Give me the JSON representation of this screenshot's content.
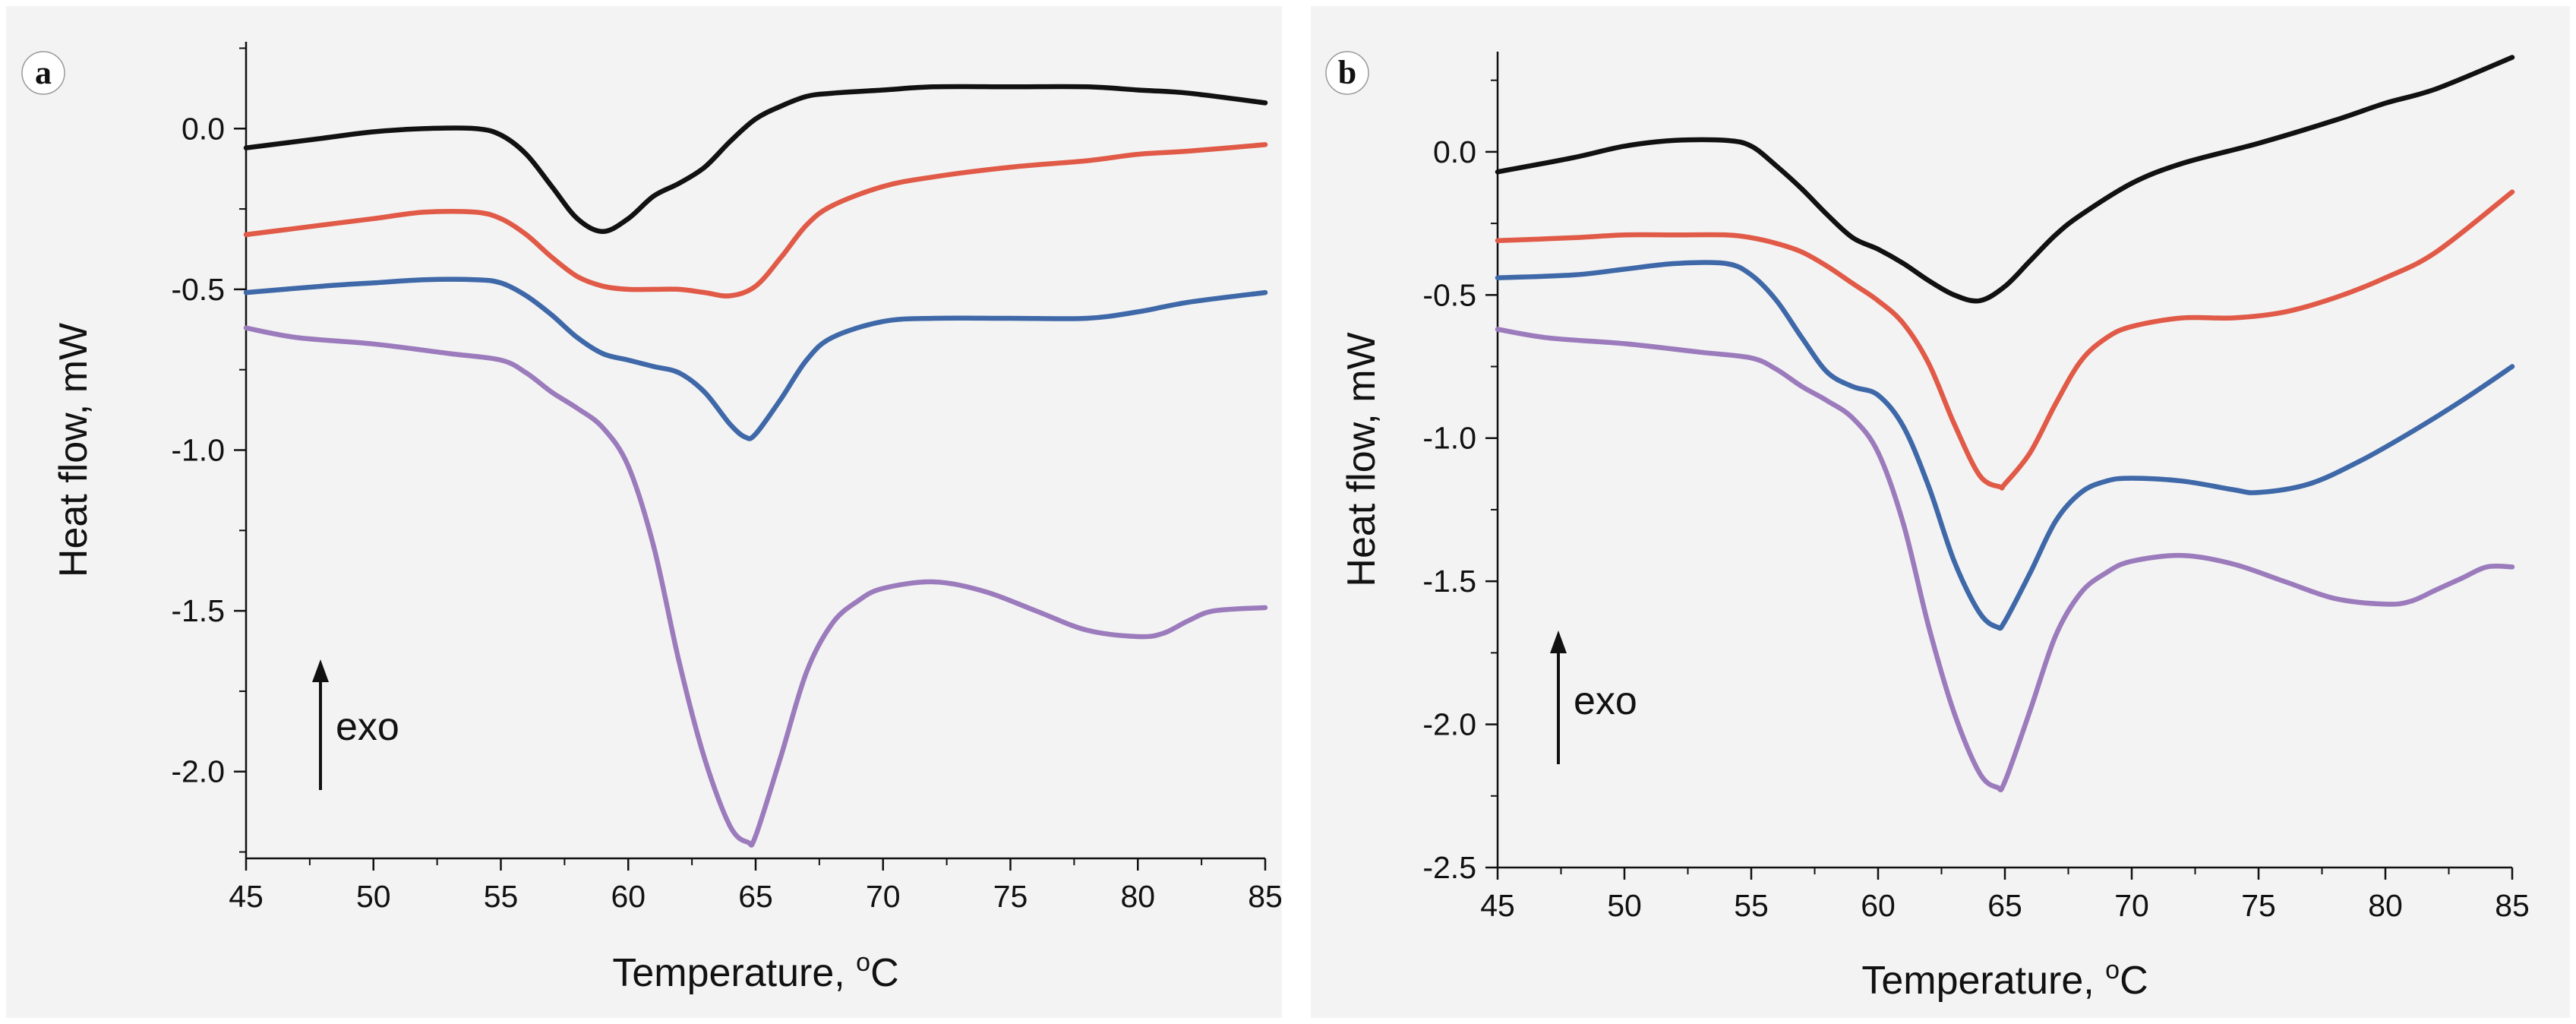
{
  "figure": {
    "colors": {
      "black": "#111111",
      "red": "#e05a47",
      "blue": "#3e68a8",
      "purple": "#9b7bbc",
      "background": "#f3f3f3"
    },
    "exo_label": "exo"
  },
  "chart_data": [
    {
      "type": "line",
      "panel_label": "a",
      "title": "",
      "xlabel": "Temperature,",
      "xlabel_unit_sup": "o",
      "xlabel_unit": "C",
      "ylabel": "Heat flow, mW",
      "xlim": [
        45,
        85
      ],
      "ylim": [
        -2.27,
        0.27
      ],
      "xticks": [
        45,
        50,
        55,
        60,
        65,
        70,
        75,
        80,
        85
      ],
      "xtick_labels": [
        "45",
        "50",
        "55",
        "60",
        "65",
        "70",
        "75",
        "80",
        "85"
      ],
      "yticks": [
        0.0,
        -0.5,
        -1.0,
        -1.5,
        -2.0
      ],
      "ytick_labels": [
        "0.0",
        "-0.5",
        "-1.0",
        "-1.5",
        "-2.0"
      ],
      "grid": false,
      "annotation": "exo",
      "series": [
        {
          "name": "black",
          "color": "#111111",
          "x": [
            45,
            48,
            50,
            52,
            54,
            55,
            56,
            57,
            58,
            59,
            60,
            61,
            62,
            63,
            64,
            65,
            66,
            67,
            68,
            70,
            72,
            75,
            78,
            80,
            82,
            85
          ],
          "y": [
            -0.06,
            -0.03,
            -0.01,
            0.0,
            0.0,
            -0.02,
            -0.08,
            -0.18,
            -0.28,
            -0.32,
            -0.28,
            -0.21,
            -0.17,
            -0.12,
            -0.04,
            0.03,
            0.07,
            0.1,
            0.11,
            0.12,
            0.13,
            0.13,
            0.13,
            0.12,
            0.11,
            0.08
          ]
        },
        {
          "name": "red",
          "color": "#e05a47",
          "x": [
            45,
            48,
            50,
            52,
            54,
            55,
            56,
            57,
            58,
            59,
            60,
            61,
            62,
            63,
            64,
            65,
            66,
            67,
            68,
            70,
            72,
            75,
            78,
            80,
            82,
            85
          ],
          "y": [
            -0.33,
            -0.3,
            -0.28,
            -0.26,
            -0.26,
            -0.28,
            -0.33,
            -0.4,
            -0.46,
            -0.49,
            -0.5,
            -0.5,
            -0.5,
            -0.51,
            -0.52,
            -0.49,
            -0.4,
            -0.3,
            -0.24,
            -0.18,
            -0.15,
            -0.12,
            -0.1,
            -0.08,
            -0.07,
            -0.05
          ]
        },
        {
          "name": "blue",
          "color": "#3e68a8",
          "x": [
            45,
            48,
            50,
            52,
            54,
            55,
            56,
            57,
            58,
            59,
            60,
            61,
            62,
            63,
            64,
            64.6,
            65,
            66,
            67,
            68,
            70,
            72,
            75,
            78,
            80,
            82,
            85
          ],
          "y": [
            -0.51,
            -0.49,
            -0.48,
            -0.47,
            -0.47,
            -0.48,
            -0.52,
            -0.58,
            -0.65,
            -0.7,
            -0.72,
            -0.74,
            -0.76,
            -0.82,
            -0.92,
            -0.96,
            -0.95,
            -0.84,
            -0.72,
            -0.65,
            -0.6,
            -0.59,
            -0.59,
            -0.59,
            -0.57,
            -0.54,
            -0.51
          ]
        },
        {
          "name": "purple",
          "color": "#9b7bbc",
          "x": [
            45,
            47,
            50,
            53,
            55,
            56,
            57,
            58,
            59,
            60,
            61,
            62,
            63,
            64,
            64.7,
            65,
            66,
            67,
            68,
            69,
            70,
            72,
            74,
            76,
            78,
            80,
            81,
            82,
            83,
            85
          ],
          "y": [
            -0.62,
            -0.65,
            -0.67,
            -0.7,
            -0.72,
            -0.76,
            -0.82,
            -0.87,
            -0.93,
            -1.05,
            -1.3,
            -1.66,
            -1.96,
            -2.17,
            -2.22,
            -2.2,
            -1.95,
            -1.69,
            -1.54,
            -1.47,
            -1.43,
            -1.41,
            -1.44,
            -1.5,
            -1.56,
            -1.58,
            -1.57,
            -1.53,
            -1.5,
            -1.49
          ]
        }
      ]
    },
    {
      "type": "line",
      "panel_label": "b",
      "title": "",
      "xlabel": "Temperature,",
      "xlabel_unit_sup": "o",
      "xlabel_unit": "C",
      "ylabel": "Heat flow, mW",
      "xlim": [
        45,
        85
      ],
      "ylim": [
        -2.5,
        0.35
      ],
      "xticks": [
        45,
        50,
        55,
        60,
        65,
        70,
        75,
        80,
        85
      ],
      "xtick_labels": [
        "45",
        "50",
        "55",
        "60",
        "65",
        "70",
        "75",
        "80",
        "85"
      ],
      "yticks": [
        0.0,
        -0.5,
        -1.0,
        -1.5,
        -2.0,
        -2.5
      ],
      "ytick_labels": [
        "0.0",
        "-0.5",
        "-1.0",
        "-1.5",
        "-2.0",
        "-2.5"
      ],
      "grid": false,
      "annotation": "exo",
      "series": [
        {
          "name": "black",
          "color": "#111111",
          "x": [
            45,
            48,
            50,
            52,
            54,
            55,
            56,
            57,
            58,
            59,
            60,
            61,
            62,
            63,
            64,
            65,
            66,
            67,
            68,
            70,
            72,
            75,
            78,
            80,
            82,
            85
          ],
          "y": [
            -0.07,
            -0.02,
            0.02,
            0.04,
            0.04,
            0.02,
            -0.05,
            -0.13,
            -0.22,
            -0.3,
            -0.34,
            -0.39,
            -0.45,
            -0.5,
            -0.52,
            -0.47,
            -0.38,
            -0.29,
            -0.22,
            -0.11,
            -0.04,
            0.03,
            0.11,
            0.17,
            0.22,
            0.33
          ]
        },
        {
          "name": "red",
          "color": "#e05a47",
          "x": [
            45,
            48,
            50,
            52,
            54,
            55,
            56,
            57,
            58,
            59,
            60,
            61,
            62,
            63,
            64,
            64.8,
            65,
            66,
            67,
            68,
            69,
            70,
            72,
            74,
            76,
            78,
            80,
            82,
            85
          ],
          "y": [
            -0.31,
            -0.3,
            -0.29,
            -0.29,
            -0.29,
            -0.3,
            -0.32,
            -0.35,
            -0.4,
            -0.46,
            -0.52,
            -0.6,
            -0.74,
            -0.95,
            -1.13,
            -1.17,
            -1.16,
            -1.05,
            -0.88,
            -0.73,
            -0.65,
            -0.61,
            -0.58,
            -0.58,
            -0.56,
            -0.51,
            -0.44,
            -0.35,
            -0.14
          ]
        },
        {
          "name": "blue",
          "color": "#3e68a8",
          "x": [
            45,
            48,
            50,
            52,
            54,
            55,
            56,
            57,
            58,
            59,
            60,
            61,
            62,
            63,
            64,
            64.7,
            65,
            66,
            67,
            68,
            69,
            70,
            72,
            74,
            75,
            77,
            79,
            81,
            83,
            85
          ],
          "y": [
            -0.44,
            -0.43,
            -0.41,
            -0.39,
            -0.39,
            -0.43,
            -0.52,
            -0.65,
            -0.77,
            -0.82,
            -0.85,
            -0.96,
            -1.17,
            -1.43,
            -1.61,
            -1.66,
            -1.64,
            -1.47,
            -1.29,
            -1.19,
            -1.15,
            -1.14,
            -1.15,
            -1.18,
            -1.19,
            -1.16,
            -1.08,
            -0.98,
            -0.87,
            -0.75
          ]
        },
        {
          "name": "purple",
          "color": "#9b7bbc",
          "x": [
            45,
            47,
            50,
            53,
            55,
            56,
            57,
            58,
            59,
            60,
            61,
            62,
            63,
            64,
            64.7,
            65,
            66,
            67,
            68,
            69,
            70,
            72,
            74,
            76,
            78,
            80,
            81,
            82,
            83,
            84,
            85
          ],
          "y": [
            -0.62,
            -0.65,
            -0.67,
            -0.7,
            -0.72,
            -0.76,
            -0.82,
            -0.87,
            -0.93,
            -1.05,
            -1.3,
            -1.66,
            -1.96,
            -2.17,
            -2.22,
            -2.2,
            -1.95,
            -1.69,
            -1.54,
            -1.47,
            -1.43,
            -1.41,
            -1.44,
            -1.5,
            -1.56,
            -1.58,
            -1.57,
            -1.53,
            -1.49,
            -1.45,
            -1.45
          ]
        }
      ]
    }
  ]
}
